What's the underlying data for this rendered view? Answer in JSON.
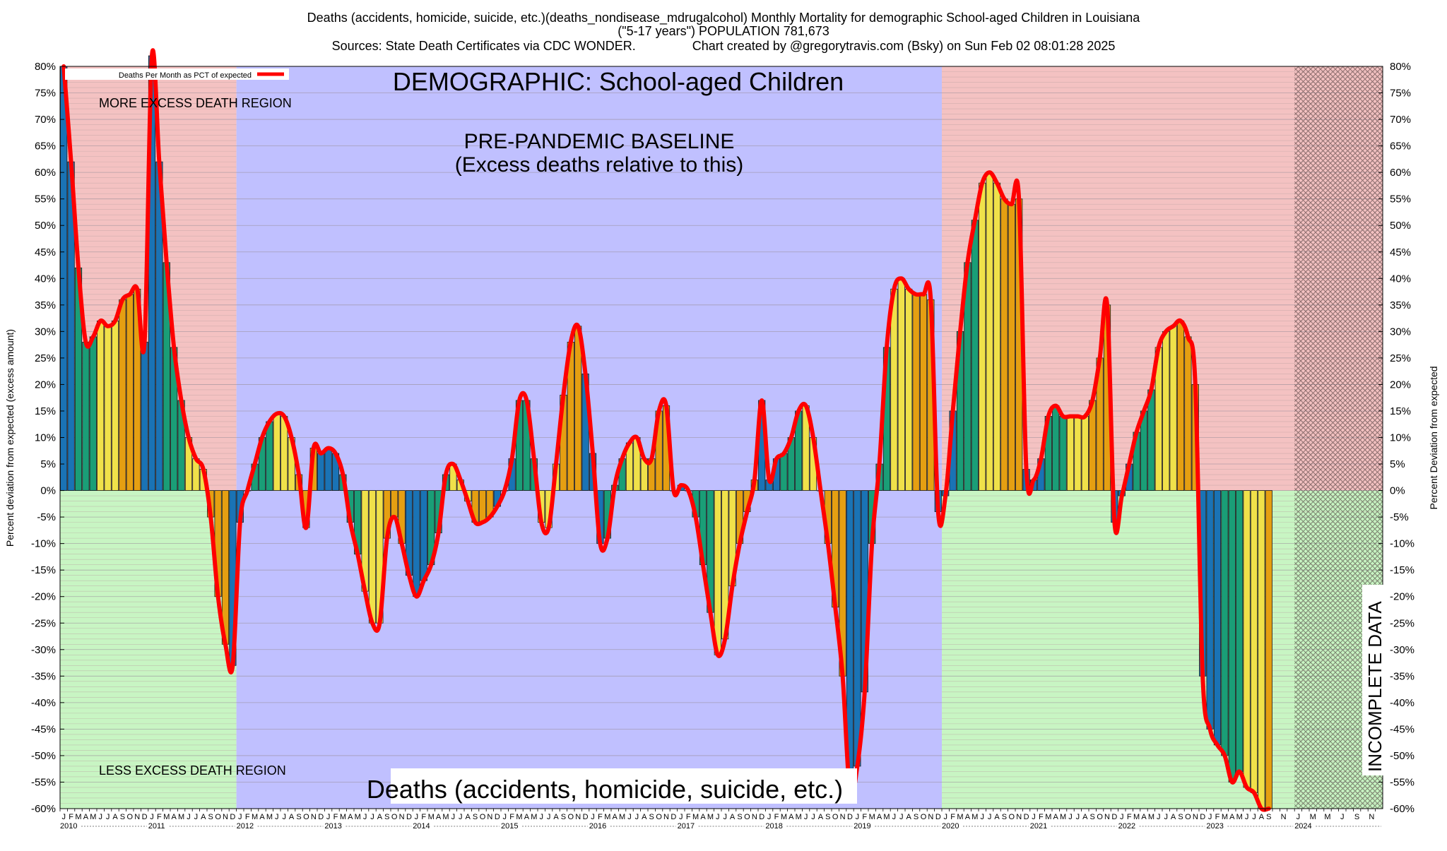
{
  "title_lines": [
    "Deaths (accidents, homicide, suicide, etc.)(deaths_nondisease_mdrugalcohol) Monthly Mortality for demographic School-aged Children in Louisiana",
    "(\"5-17 years\") POPULATION 781,673",
    "Sources: State Death Certificates via CDC WONDER.                Chart created by @gregorytravis.com (Bsky) on Sun Feb 02 08:01:28 2025"
  ],
  "legend_label": "Deaths Per Month as PCT of expected",
  "ylabel_left": "Percent deviation from expected (excess amount)",
  "ylabel_right": "Percent Deviation from expected",
  "annotations": {
    "demographic": "DEMOGRAPHIC: School-aged Children",
    "baseline_1": "PRE-PANDEMIC BASELINE",
    "baseline_2": "(Excess deaths relative to this)",
    "more_excess": "MORE EXCESS DEATH REGION",
    "less_excess": "LESS EXCESS DEATH REGION",
    "bottom_label": "Deaths (accidents, homicide, suicide, etc.)",
    "incomplete": "INCOMPLETE DATA"
  },
  "colors": {
    "more_region": "#f4c2c2",
    "less_region": "#c8f5c3",
    "baseline_region": "#c0c0ff",
    "line": "#ff0000",
    "bar_winter": "#1a73b5",
    "bar_spring": "#1a9e77",
    "bar_summer": "#f0e14a",
    "bar_fall": "#e59f12"
  },
  "chart_data": {
    "type": "bar",
    "start": "2010-01",
    "frequency": "monthly",
    "years": [
      "2010",
      "2011",
      "2012",
      "2013",
      "2014",
      "2015",
      "2016",
      "2017",
      "2018",
      "2019",
      "2020",
      "2021",
      "2022",
      "2023",
      "2024"
    ],
    "month_letters": [
      "J",
      "F",
      "M",
      "A",
      "M",
      "J",
      "J",
      "A",
      "S",
      "O",
      "N",
      "D"
    ],
    "ylim": [
      -60,
      80
    ],
    "yticks": [
      -60,
      -55,
      -50,
      -45,
      -40,
      -35,
      -30,
      -25,
      -20,
      -15,
      -10,
      -5,
      0,
      5,
      10,
      15,
      20,
      25,
      30,
      35,
      40,
      45,
      50,
      55,
      60,
      65,
      70,
      75,
      80
    ],
    "ytick_format": "%",
    "baseline_period": [
      "2012-01",
      "2019-12"
    ],
    "incomplete_from": "2024-01",
    "grid": "horizontal",
    "series": [
      {
        "name": "Deaths Per Month as PCT of expected",
        "values": [
          80,
          62,
          42,
          28,
          29,
          32,
          31,
          32,
          36,
          37,
          38,
          28,
          82,
          62,
          43,
          27,
          17,
          10,
          6,
          4,
          -5,
          -20,
          -29,
          -33,
          -6,
          0,
          5,
          10,
          13,
          14.5,
          14,
          10,
          3,
          -7,
          8,
          7,
          8,
          7,
          3,
          -6,
          -12,
          -19,
          -25,
          -25,
          -9,
          -5,
          -10,
          -16,
          -20,
          -17,
          -14,
          -8,
          3,
          5,
          2,
          -2,
          -6,
          -6,
          -5,
          -3,
          0,
          6,
          17,
          17,
          6,
          -6,
          -7,
          5,
          18,
          28,
          31,
          22,
          7,
          -10,
          -9,
          1,
          6,
          9,
          10,
          6,
          6,
          15,
          16,
          0,
          1,
          0,
          -5,
          -14,
          -23,
          -31,
          -28,
          -18,
          -10,
          -4,
          2,
          17,
          2,
          6,
          7,
          10,
          15,
          16,
          10,
          0,
          -10,
          -22,
          -35,
          -57,
          -52,
          -38,
          -10,
          5,
          27,
          38,
          40,
          38,
          37,
          37,
          36,
          -4,
          -1,
          15,
          30,
          43,
          51,
          58,
          60,
          58,
          55,
          54,
          55,
          4,
          2,
          6,
          14,
          16,
          14,
          14,
          14,
          14,
          17,
          25,
          35,
          -6,
          -1,
          5,
          11,
          15,
          19,
          27,
          30,
          31,
          32,
          29,
          20,
          -35,
          -45,
          -48,
          -50,
          -55,
          -53,
          -56,
          -57,
          -60,
          -60
        ]
      }
    ]
  }
}
